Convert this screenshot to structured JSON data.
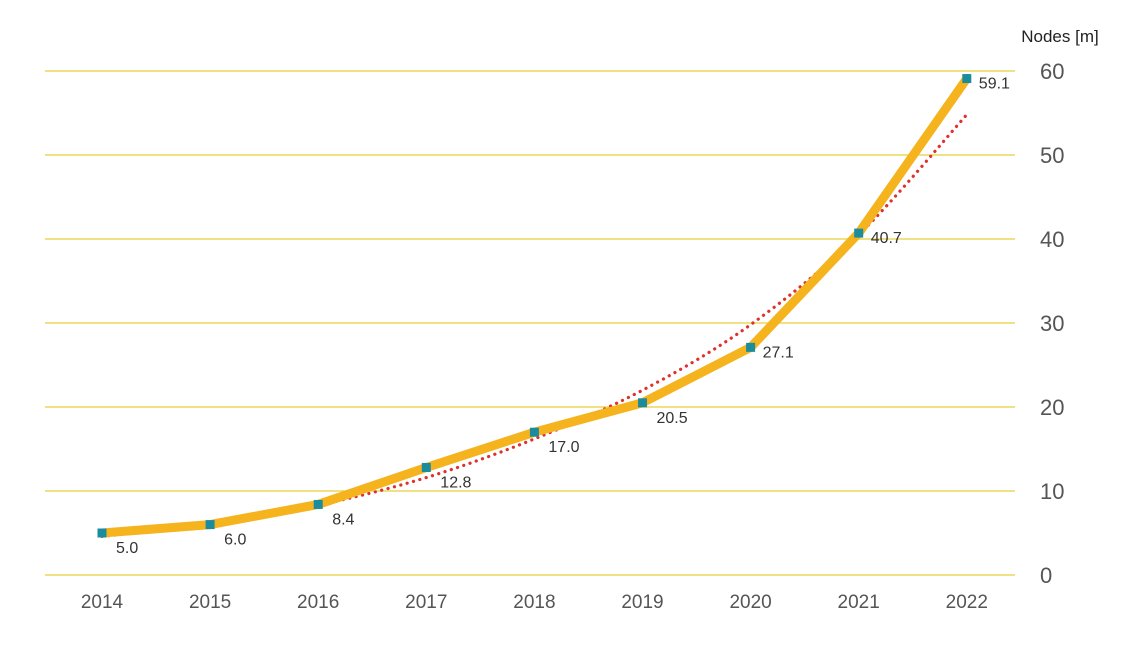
{
  "chart_data": {
    "type": "line",
    "title": "",
    "xlabel": "",
    "ylabel": "Nodes [m]",
    "x": [
      "2014",
      "2015",
      "2016",
      "2017",
      "2018",
      "2019",
      "2020",
      "2021",
      "2022"
    ],
    "ylim": [
      0,
      60
    ],
    "yticks": [
      "0",
      "10",
      "20",
      "30",
      "40",
      "50",
      "60"
    ],
    "grid": true,
    "y_axis_side": "right",
    "series": [
      {
        "name": "Nodes",
        "values": [
          5.0,
          6.0,
          8.4,
          12.8,
          17.0,
          20.5,
          27.1,
          40.7,
          59.1
        ],
        "labels": [
          "5.0",
          "6.0",
          "8.4",
          "12.8",
          "17.0",
          "20.5",
          "27.1",
          "40.7",
          "59.1"
        ]
      },
      {
        "name": "Trend",
        "style": "dotted",
        "values": [
          4.6,
          6.0,
          8.3,
          11.6,
          16.2,
          22.0,
          29.8,
          40.5,
          54.8
        ]
      }
    ],
    "colors": {
      "line": "#F5B41E",
      "marker": "#1A8C9E",
      "trend": "#E0302A",
      "grid": "#E8CF3A"
    }
  }
}
